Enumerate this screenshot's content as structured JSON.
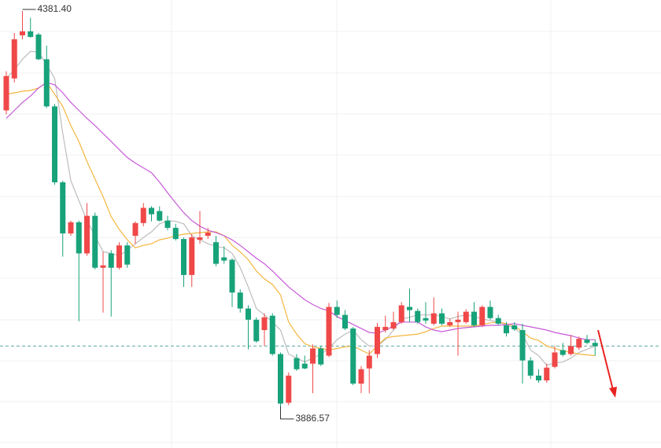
{
  "chart_data": {
    "type": "candlestick",
    "open": [
      4257,
      4297,
      4351,
      4356,
      4352,
      4321,
      4262,
      4167,
      4103,
      4117,
      4078,
      4125,
      4060,
      4078,
      4060,
      4088,
      4100,
      4116,
      4135,
      4131,
      4119,
      4110,
      4096,
      4051,
      4095,
      4100,
      4092,
      4073,
      4070,
      4029,
      4009,
      3995,
      3982,
      4000,
      3952,
      3891,
      3947,
      3940,
      3940,
      3959,
      3950,
      4011,
      4001,
      3984,
      3915,
      3934,
      3952,
      3982,
      3984,
      3992,
      4011,
      4006,
      3997,
      3990,
      4003,
      3988,
      3992,
      3992,
      4005,
      3988,
      4011,
      3997,
      3988,
      3988,
      3982,
      3944,
      3925,
      3919,
      3936,
      3957,
      3952,
      3960,
      3970,
      3966
    ],
    "high": [
      4306,
      4354,
      4381.4,
      4373,
      4354,
      4338,
      4265,
      4169,
      4119,
      4119,
      4141,
      4129,
      4080,
      4082,
      4092,
      4092,
      4118,
      4141,
      4137,
      4137,
      4125,
      4115,
      4098,
      4102,
      4131,
      4110,
      4100,
      4087,
      4072,
      4033,
      4013,
      3998,
      4003,
      4003,
      3954,
      3929,
      3952,
      3950,
      3964,
      3962,
      4016,
      4019,
      4007,
      3986,
      3937,
      3957,
      3991,
      4000,
      4005,
      4017,
      4034,
      4009,
      4017,
      4023,
      4009,
      3996,
      4005,
      4008,
      4017,
      4013,
      4019,
      4001,
      3992,
      3992,
      3990,
      3948,
      3933,
      3940,
      3962,
      3966,
      3976,
      3974,
      3976,
      3970
    ],
    "low": [
      4252,
      4292,
      4346,
      4348,
      4320,
      4260,
      4164,
      4074,
      4100,
      3993,
      4075,
      4058,
      4004,
      3999,
      4058,
      4060,
      4090,
      4112,
      4118,
      4118,
      4107,
      4094,
      4036,
      4036,
      4090,
      4096,
      4062,
      4065,
      4011,
      4004,
      3958,
      3966,
      3962,
      3950,
      3886.57,
      3888,
      3931,
      3933,
      3903,
      3937,
      3948,
      3997,
      3982,
      3913,
      3903,
      3903,
      3947,
      3979,
      3982,
      3990,
      3992,
      3990,
      3990,
      3988,
      3988,
      3986,
      3950,
      3990,
      3986,
      3986,
      3995,
      3988,
      3974,
      3981,
      3915,
      3921,
      3916,
      3916,
      3934,
      3949,
      3950,
      3957,
      3964,
      3950
    ],
    "close": [
      4300,
      4346,
      4356,
      4349,
      4321,
      4262,
      4167,
      4103,
      4117,
      4078,
      4125,
      4060,
      4063,
      4060,
      4088,
      4064,
      4116,
      4135,
      4127,
      4119,
      4110,
      4096,
      4051,
      4098,
      4098,
      4104,
      4065,
      4069,
      4029,
      4009,
      3995,
      3968,
      3998,
      3952,
      3890,
      3925,
      3933,
      3934,
      3959,
      3939,
      4011,
      4001,
      3984,
      3915,
      3933,
      3950,
      3986,
      3986,
      3992,
      4013,
      4007,
      3992,
      3994,
      4003,
      3990,
      3992,
      3995,
      4005,
      3988,
      4011,
      3997,
      3990,
      3978,
      3983,
      3944,
      3925,
      3919,
      3935,
      3954,
      3951,
      3962,
      3971,
      3966,
      3962
    ],
    "up_color": "#f04848",
    "down_color": "#17a27a",
    "moving_averages": [
      {
        "color": "#bdbdbd",
        "values": [
          4297,
          4308,
          4321,
          4331,
          4330,
          4314,
          4297,
          4228,
          4169,
          4144,
          4119,
          4100,
          4080,
          4078,
          4075,
          4082,
          4090,
          4098,
          4105,
          4115,
          4119,
          4118,
          4115,
          4100,
          4095,
          4090,
          4087,
          4085,
          4078,
          4060,
          4036,
          4009,
          4001,
          3992,
          3982,
          3952,
          3947,
          3942,
          3947,
          3952,
          3959,
          3970,
          3977,
          3982,
          3970,
          3962,
          3962,
          3970,
          3982,
          3996,
          3998,
          4001,
          4001,
          4001,
          3999,
          3996,
          3999,
          4001,
          3999,
          3996,
          3994,
          3992,
          3989,
          3984,
          3977,
          3957,
          3950,
          3938,
          3941,
          3942,
          3947,
          3954,
          3958,
          3962
        ]
      },
      {
        "color": "#f4b63f",
        "values": [
          4277,
          4279,
          4281,
          4282,
          4285,
          4292,
          4277,
          4262,
          4238,
          4218,
          4193,
          4171,
          4149,
          4124,
          4108,
          4095,
          4085,
          4088,
          4090,
          4095,
          4097,
          4100,
          4102,
          4103,
          4104,
          4105,
          4105,
          4100,
          4088,
          4080,
          4070,
          4056,
          4046,
          4039,
          4026,
          3992,
          3977,
          3965,
          3961,
          3959,
          3957,
          3959,
          3961,
          3962,
          3957,
          3952,
          3962,
          3972,
          3974,
          3975,
          3976,
          3977,
          3980,
          3984,
          3987,
          3987,
          3987,
          3987,
          3987,
          3989,
          3991,
          3992,
          3990,
          3987,
          3980,
          3972,
          3969,
          3962,
          3959,
          3956,
          3954,
          3952,
          3951,
          3950
        ]
      },
      {
        "color": "#c75ad8",
        "values": [
          4247,
          4257,
          4267,
          4275,
          4285,
          4292,
          4289,
          4279,
          4267,
          4257,
          4247,
          4238,
          4228,
          4218,
          4208,
          4198,
          4191,
          4185,
          4179,
          4167,
          4154,
          4141,
          4129,
          4119,
          4112,
          4107,
          4104,
          4100,
          4095,
          4088,
          4080,
          4072,
          4065,
          4056,
          4046,
          4036,
          4028,
          4020,
          4014,
          4009,
          4006,
          3999,
          3994,
          3989,
          3984,
          3979,
          3978,
          3982,
          3987,
          3992,
          3992,
          3992,
          3986,
          3982,
          3980,
          3982,
          3984,
          3985,
          3986,
          3987,
          3988,
          3988,
          3989,
          3990,
          3988,
          3986,
          3984,
          3982,
          3979,
          3977,
          3975,
          3972,
          3970,
          3970
        ]
      }
    ],
    "high_label": "4381.40",
    "low_label": "3886.57",
    "ylim": [
      3834.4,
      4395.2
    ],
    "last_price_line": true
  }
}
